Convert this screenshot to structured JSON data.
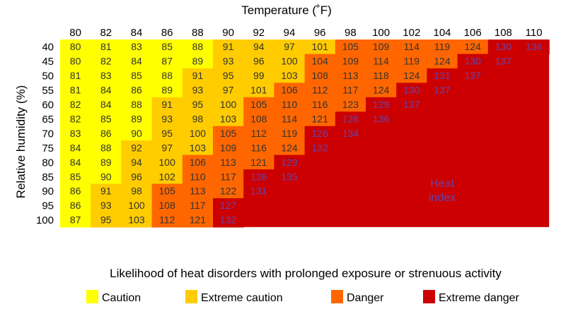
{
  "chart_data": {
    "type": "heatmap",
    "title": "Temperature (˚F)",
    "xlabel": "Temperature (˚F)",
    "ylabel": "Relative humidity (%)",
    "x": [
      80,
      82,
      84,
      86,
      88,
      90,
      92,
      94,
      96,
      98,
      100,
      102,
      104,
      106,
      108,
      110
    ],
    "y": [
      40,
      45,
      50,
      55,
      60,
      65,
      70,
      75,
      80,
      85,
      90,
      95,
      100
    ],
    "values": [
      [
        80,
        81,
        83,
        85,
        88,
        91,
        94,
        97,
        101,
        105,
        109,
        114,
        119,
        124,
        130,
        136
      ],
      [
        80,
        82,
        84,
        87,
        89,
        93,
        96,
        100,
        104,
        109,
        114,
        119,
        124,
        130,
        137,
        null
      ],
      [
        81,
        83,
        85,
        88,
        91,
        95,
        99,
        103,
        108,
        113,
        118,
        124,
        131,
        137,
        null,
        null
      ],
      [
        81,
        84,
        86,
        89,
        93,
        97,
        101,
        106,
        112,
        117,
        124,
        130,
        137,
        null,
        null,
        null
      ],
      [
        82,
        84,
        88,
        91,
        95,
        100,
        105,
        110,
        116,
        123,
        129,
        137,
        null,
        null,
        null,
        null
      ],
      [
        82,
        85,
        89,
        93,
        98,
        103,
        108,
        114,
        121,
        128,
        136,
        null,
        null,
        null,
        null,
        null
      ],
      [
        83,
        86,
        90,
        95,
        100,
        105,
        112,
        119,
        126,
        134,
        null,
        null,
        null,
        null,
        null,
        null
      ],
      [
        84,
        88,
        92,
        97,
        103,
        109,
        116,
        124,
        132,
        null,
        null,
        null,
        null,
        null,
        null,
        null
      ],
      [
        84,
        89,
        94,
        100,
        106,
        113,
        121,
        129,
        null,
        null,
        null,
        null,
        null,
        null,
        null,
        null
      ],
      [
        85,
        90,
        96,
        102,
        110,
        117,
        126,
        135,
        null,
        null,
        null,
        null,
        null,
        null,
        null,
        null
      ],
      [
        86,
        91,
        98,
        105,
        113,
        122,
        131,
        null,
        null,
        null,
        null,
        null,
        null,
        null,
        null,
        null
      ],
      [
        86,
        93,
        100,
        108,
        117,
        127,
        null,
        null,
        null,
        null,
        null,
        null,
        null,
        null,
        null,
        null
      ],
      [
        87,
        95,
        103,
        112,
        121,
        132,
        null,
        null,
        null,
        null,
        null,
        null,
        null,
        null,
        null,
        null
      ]
    ],
    "annotation": [
      "Heat",
      "index"
    ],
    "legend_title": "Likelihood of heat disorders with prolonged exposure or strenuous activity",
    "categories": [
      {
        "label": "Caution",
        "min": 80,
        "max": 90,
        "color": "#FFFF00"
      },
      {
        "label": "Extreme caution",
        "min": 91,
        "max": 103,
        "color": "#FFCC00"
      },
      {
        "label": "Danger",
        "min": 104,
        "max": 124,
        "color": "#FF6600"
      },
      {
        "label": "Extreme danger",
        "min": 125,
        "max": 999,
        "color": "#CC0000"
      }
    ],
    "colors": {
      "text_light": "#333333",
      "text_dark": "#6644AA"
    }
  }
}
